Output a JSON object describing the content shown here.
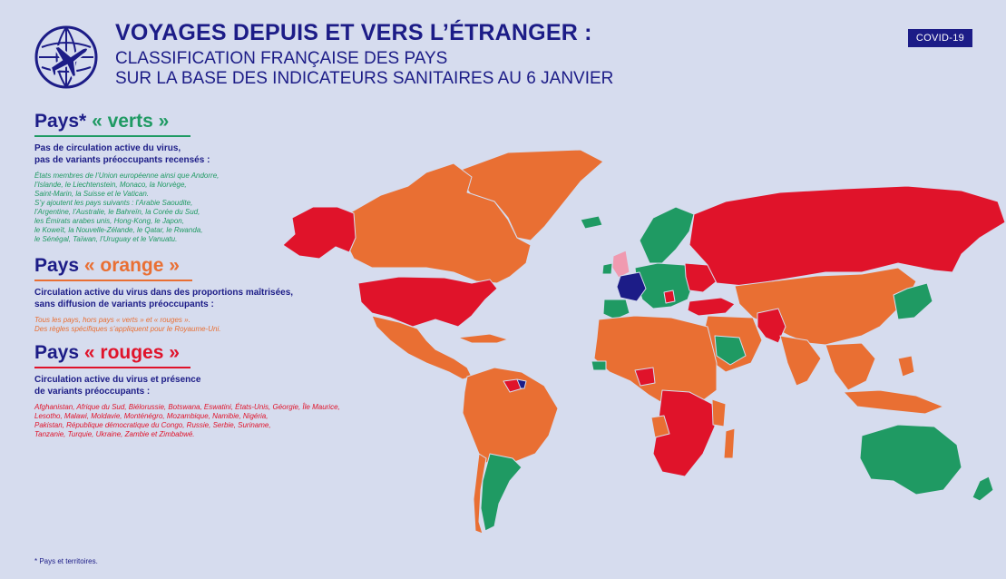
{
  "header": {
    "title": "VOYAGES DEPUIS ET VERS L’ÉTRANGER :",
    "subtitle_line1": "CLASSIFICATION FRANÇAISE DES PAYS",
    "subtitle_line2": "SUR LA BASE DES INDICATEURS SANITAIRES AU 6 JANVIER",
    "badge": "COVID-19"
  },
  "colors": {
    "navy": "#1c1c87",
    "green": "#1f9a63",
    "orange": "#e96f33",
    "red": "#e0132a",
    "pink": "#f09ab0",
    "background": "#d6dcee"
  },
  "legend": {
    "green": {
      "prefix": "Pays*",
      "label": "« verts »",
      "description": "Pas de circulation active du virus,\npas de variants préoccupants recensés :",
      "countries": "États membres de l’Union européenne ainsi que Andorre,\nl’Islande, le Liechtenstein, Monaco, la Norvège,\nSaint-Marin, la Suisse et le Vatican.\nS’y ajoutent les pays suivants : l’Arabie Saoudite,\nl’Argentine, l’Australie, le Bahreïn, la Corée du Sud,\nles Émirats arabes unis, Hong-Kong, le Japon,\nle Koweït, la Nouvelle-Zélande, le Qatar, le Rwanda,\nle Sénégal, Taïwan, l’Uruguay et le Vanuatu."
    },
    "orange": {
      "prefix": "Pays",
      "label": "« orange »",
      "description": "Circulation active du virus dans des proportions maîtrisées,\nsans diffusion de variants préoccupants :",
      "countries": "Tous les pays, hors pays « verts » et « rouges ».\nDes règles spécifiques s’appliquent pour le Royaume-Uni."
    },
    "red": {
      "prefix": "Pays",
      "label": "« rouges »",
      "description": "Circulation active du virus et présence\nde variants préoccupants :",
      "countries": "Afghanistan, Afrique du Sud, Biélorussie, Botswana, Eswatini, États-Unis, Géorgie, Île Maurice,\nLesotho, Malawi, Moldavie, Monténégro, Mozambique, Namibie, Nigéria,\nPakistan, République démocratique du Congo, Russie, Serbie, Suriname,\nTanzanie, Turquie, Ukraine, Zambie et Zimbabwé."
    }
  },
  "footnote": "* Pays et territoires."
}
